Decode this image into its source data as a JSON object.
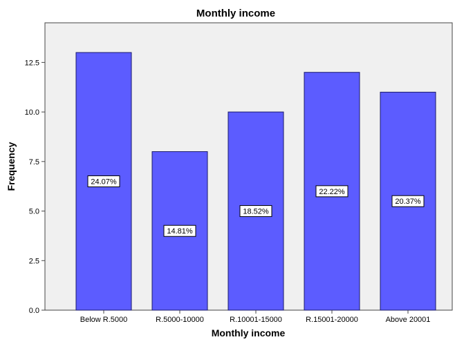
{
  "chart_data": {
    "type": "bar",
    "title": "Monthly income",
    "xlabel": "Monthly income",
    "ylabel": "Frequency",
    "categories": [
      "Below R.5000",
      "R.5000-10000",
      "R.10001-15000",
      "R.15001-20000",
      "Above 20001"
    ],
    "values": [
      13,
      8,
      10,
      12,
      11
    ],
    "data_labels": [
      "24.07%",
      "14.81%",
      "18.52%",
      "22.22%",
      "20.37%"
    ],
    "ylim": [
      0,
      14.5
    ],
    "yticks": [
      "0.0",
      "2.5",
      "5.0",
      "7.5",
      "10.0",
      "12.5"
    ],
    "ytick_values": [
      0,
      2.5,
      5,
      7.5,
      10,
      12.5
    ],
    "grid": false,
    "legend": "none",
    "colors": {
      "bar_fill": "#5c5cff",
      "bar_stroke": "#1a1a6a",
      "plot_background": "#f0f0f0",
      "axis": "#444444"
    }
  }
}
